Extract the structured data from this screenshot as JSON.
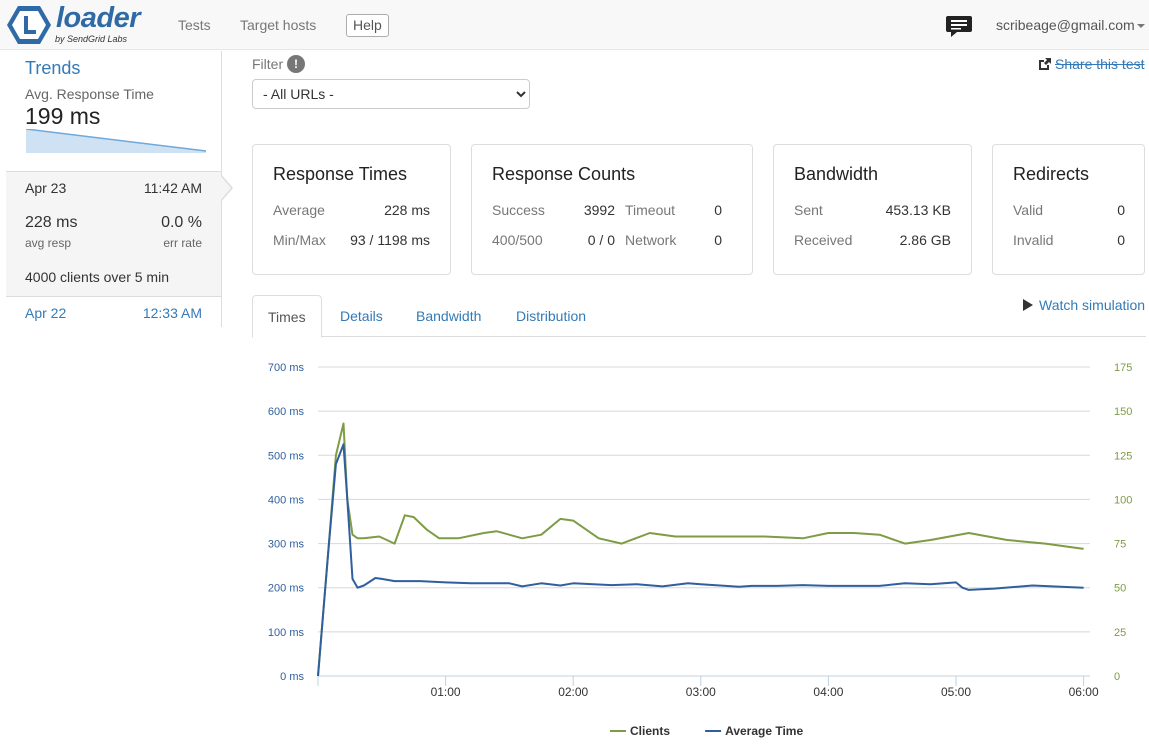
{
  "brand": {
    "name": "loader",
    "tagline": "by SendGrid Labs",
    "accent": "#2f6aa7"
  },
  "nav": {
    "tests": "Tests",
    "target_hosts": "Target hosts",
    "help": "Help",
    "chat_icon": "chat-icon",
    "user_email": "scribeage@gmail.com"
  },
  "sidebar": {
    "trends_title": "Trends",
    "avg_label": "Avg. Response Time",
    "avg_value": "199 ms",
    "current_test": {
      "date": "Apr 23",
      "time": "11:42 AM",
      "avg_resp_value": "228 ms",
      "avg_resp_label": "avg resp",
      "err_rate_value": "0.0 %",
      "err_rate_label": "err rate",
      "clients_prefix": "4000",
      "clients_mid": " clients over ",
      "clients_duration": "5",
      "clients_suffix": " min"
    },
    "previous_test": {
      "date": "Apr 22",
      "time": "12:33 AM"
    }
  },
  "filter": {
    "label": "Filter",
    "info_glyph": "!",
    "selected": "- All URLs -"
  },
  "share_label": "Share this test",
  "panels": {
    "response_times": {
      "title": "Response Times",
      "average_label": "Average",
      "average_value": "228 ms",
      "minmax_label": "Min/Max",
      "minmax_value": "93 / 1198 ms"
    },
    "response_counts": {
      "title": "Response Counts",
      "success_label": "Success",
      "success_value": "3992",
      "timeout_label": "Timeout",
      "timeout_value": "0",
      "errors_label": "400/500",
      "errors_value": "0 / 0",
      "network_label": "Network",
      "network_value": "0"
    },
    "bandwidth": {
      "title": "Bandwidth",
      "sent_label": "Sent",
      "sent_value": "453.13 KB",
      "received_label": "Received",
      "received_value": "2.86 GB"
    },
    "redirects": {
      "title": "Redirects",
      "valid_label": "Valid",
      "valid_value": "0",
      "invalid_label": "Invalid",
      "invalid_value": "0"
    }
  },
  "tabs": [
    "Times",
    "Details",
    "Bandwidth",
    "Distribution"
  ],
  "active_tab": "Times",
  "watch_label": "Watch simulation",
  "chart_data": {
    "type": "line",
    "x_unit": "minutes",
    "x_ticks": [
      "01:00",
      "02:00",
      "03:00",
      "04:00",
      "05:00",
      "06:00"
    ],
    "x_tick_values": [
      1,
      2,
      3,
      4,
      5,
      6
    ],
    "xlim": [
      0,
      6.05
    ],
    "y_left": {
      "ticks": [
        "0 ms",
        "100 ms",
        "200 ms",
        "300 ms",
        "400 ms",
        "500 ms",
        "600 ms",
        "700 ms"
      ],
      "ylim": [
        0,
        700
      ]
    },
    "y_right": {
      "ticks": [
        "0",
        "25",
        "50",
        "75",
        "100",
        "125",
        "150",
        "175"
      ],
      "ylim": [
        0,
        175
      ]
    },
    "grid": true,
    "legend_position": "bottom",
    "series": [
      {
        "name": "Clients",
        "axis": "right",
        "color": "#7d9c45",
        "x": [
          0,
          0.08,
          0.14,
          0.2,
          0.23,
          0.27,
          0.31,
          0.36,
          0.48,
          0.6,
          0.68,
          0.75,
          0.85,
          0.95,
          1.1,
          1.3,
          1.4,
          1.6,
          1.75,
          1.9,
          2.0,
          2.2,
          2.38,
          2.6,
          2.7,
          2.8,
          3.0,
          3.2,
          3.5,
          3.8,
          4.0,
          4.2,
          4.4,
          4.6,
          4.8,
          5.1,
          5.4,
          5.7,
          6.0
        ],
        "y": [
          0,
          70,
          125,
          143,
          100,
          80,
          78,
          78,
          79,
          75,
          91,
          90,
          83,
          78,
          78,
          81,
          82,
          78,
          80,
          89,
          88,
          78,
          75,
          81,
          80,
          79,
          79,
          79,
          79,
          78,
          81,
          81,
          80,
          75,
          77,
          81,
          77,
          75,
          72
        ]
      },
      {
        "name": "Average Time",
        "axis": "left",
        "color": "#2f5f9c",
        "x": [
          0,
          0.08,
          0.14,
          0.2,
          0.23,
          0.27,
          0.31,
          0.36,
          0.45,
          0.5,
          0.6,
          0.8,
          1.0,
          1.2,
          1.3,
          1.5,
          1.6,
          1.75,
          1.9,
          2.0,
          2.3,
          2.5,
          2.7,
          2.9,
          3.0,
          3.3,
          3.4,
          3.6,
          3.8,
          4.0,
          4.2,
          4.4,
          4.6,
          4.8,
          5.0,
          5.05,
          5.1,
          5.3,
          5.6,
          6.0
        ],
        "y": [
          0,
          280,
          480,
          525,
          400,
          220,
          200,
          205,
          222,
          220,
          215,
          215,
          212,
          210,
          210,
          210,
          203,
          210,
          205,
          210,
          206,
          208,
          203,
          210,
          208,
          202,
          204,
          204,
          206,
          204,
          204,
          204,
          210,
          208,
          212,
          200,
          195,
          198,
          205,
          200
        ]
      }
    ]
  }
}
